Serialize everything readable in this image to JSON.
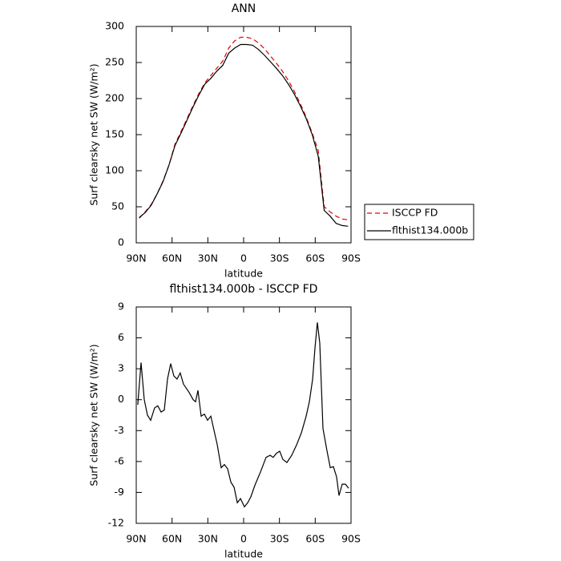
{
  "chart_data": [
    {
      "type": "line",
      "title": "ANN",
      "xlabel": "latitude",
      "ylabel": "Surf clearsky net SW (W/m²)",
      "x": [
        87.5,
        82.5,
        77.5,
        72.5,
        67.5,
        62.5,
        57.5,
        52.5,
        47.5,
        42.5,
        37.5,
        32.5,
        27.5,
        22.5,
        17.5,
        12.5,
        7.5,
        2.5,
        -2.5,
        -7.5,
        -12.5,
        -17.5,
        -22.5,
        -27.5,
        -32.5,
        -37.5,
        -42.5,
        -47.5,
        -52.5,
        -57.5,
        -62.5,
        -67.5,
        -72.5,
        -77.5,
        -82.5,
        -87.5
      ],
      "series": [
        {
          "name": "ISCCP FD",
          "color": "#e00000",
          "dash": "6,4",
          "values": [
            34,
            43,
            53,
            68,
            86,
            108,
            137,
            154,
            172,
            190,
            207,
            222,
            232,
            242,
            252,
            270,
            280,
            285,
            285,
            283,
            277,
            269,
            259,
            249,
            238,
            225,
            210,
            193,
            174,
            152,
            128,
            50,
            43,
            37,
            33,
            32
          ]
        },
        {
          "name": "flthist134.000b",
          "color": "#000000",
          "values": [
            35,
            42,
            52,
            68,
            85,
            108,
            135,
            152,
            170,
            188,
            205,
            220,
            228,
            238,
            246,
            263,
            270,
            275,
            275,
            274,
            268,
            260,
            251,
            242,
            232,
            220,
            206,
            190,
            172,
            150,
            120,
            45,
            37,
            27,
            24,
            23
          ]
        }
      ],
      "xlim": [
        90,
        -90
      ],
      "xticks": [
        {
          "value": 90,
          "label": "90N"
        },
        {
          "value": 60,
          "label": "60N"
        },
        {
          "value": 30,
          "label": "30N"
        },
        0,
        {
          "value": -30,
          "label": "30S"
        },
        {
          "value": -60,
          "label": "60S"
        },
        {
          "value": -90,
          "label": "90S"
        }
      ],
      "ylim": [
        0,
        300
      ],
      "yticks": [
        0,
        50,
        100,
        150,
        200,
        250,
        300
      ],
      "legend": "right"
    },
    {
      "type": "line",
      "title": "flthist134.000b - ISCCP FD",
      "xlabel": "latitude",
      "ylabel": "Surf clearsky net SW (W/m²)",
      "color": "#000000",
      "x": [
        88.7,
        86.0,
        83.3,
        80.6,
        77.9,
        74.6,
        71.9,
        69.2,
        66.5,
        63.8,
        61.1,
        58.5,
        55.8,
        53.1,
        50.4,
        45.7,
        42.3,
        40.3,
        38.3,
        35.6,
        32.9,
        30.2,
        27.5,
        24.8,
        22.2,
        18.8,
        16.1,
        13.4,
        10.7,
        8.0,
        5.3,
        2.6,
        -0.7,
        -3.4,
        -6.1,
        -9.5,
        -14.2,
        -18.8,
        -22.2,
        -24.8,
        -27.5,
        -30.2,
        -32.9,
        -36.3,
        -40.3,
        -44.3,
        -48.4,
        -52.4,
        -55.1,
        -57.8,
        -59.8,
        -61.8,
        -63.8,
        -66.5,
        -69.9,
        -72.6,
        -75.2,
        -77.9,
        -79.9,
        -82.6,
        -85.3,
        -88.0
      ],
      "values": [
        -0.5,
        3.6,
        0,
        -1.5,
        -2,
        -0.8,
        -0.6,
        -1.2,
        -1,
        2,
        3.5,
        2.3,
        2,
        2.6,
        1.5,
        0.7,
        0,
        -0.2,
        0.9,
        -1.6,
        -1.4,
        -2,
        -1.6,
        -3,
        -4.3,
        -6.6,
        -6.3,
        -6.7,
        -8,
        -8.5,
        -10,
        -9.6,
        -10.4,
        -10,
        -9.4,
        -8.3,
        -7,
        -5.6,
        -5.4,
        -5.6,
        -5.2,
        -5,
        -5.8,
        -6.1,
        -5.4,
        -4.4,
        -3.2,
        -1.6,
        -0.2,
        2,
        5,
        7.5,
        5.5,
        -2.8,
        -5,
        -6.6,
        -6.5,
        -7.5,
        -9.3,
        -8.2,
        -8.2,
        -8.6
      ],
      "xlim": [
        90,
        -90
      ],
      "xticks": [
        {
          "value": 90,
          "label": "90N"
        },
        {
          "value": 60,
          "label": "60N"
        },
        {
          "value": 30,
          "label": "30N"
        },
        0,
        {
          "value": -30,
          "label": "30S"
        },
        {
          "value": -60,
          "label": "60S"
        },
        {
          "value": -90,
          "label": "90S"
        }
      ],
      "ylim": [
        -12,
        9
      ],
      "yticks": [
        -12,
        -9,
        -6,
        -3,
        0,
        3,
        6,
        9
      ]
    }
  ]
}
